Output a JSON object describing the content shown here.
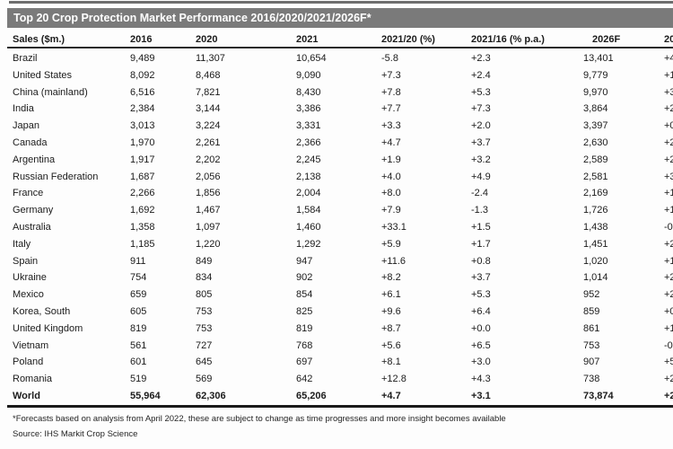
{
  "chart_data": {
    "type": "table",
    "title": "Top 20 Crop Protection Market Performance 2016/2020/2021/2026F*",
    "columns": [
      "Sales ($m.)",
      "2016",
      "2020",
      "2021",
      "2021/20 (%)",
      "2021/16 (% p.a.)",
      "2026F",
      "20"
    ],
    "rows": [
      [
        "Brazil",
        "9,489",
        "11,307",
        "10,654",
        "-5.8",
        "+2.3",
        "13,401",
        "+4"
      ],
      [
        "United States",
        "8,092",
        "8,468",
        "9,090",
        "+7.3",
        "+2.4",
        "9,779",
        "+1"
      ],
      [
        "China (mainland)",
        "6,516",
        "7,821",
        "8,430",
        "+7.8",
        "+5.3",
        "9,970",
        "+3"
      ],
      [
        "India",
        "2,384",
        "3,144",
        "3,386",
        "+7.7",
        "+7.3",
        "3,864",
        "+2"
      ],
      [
        "Japan",
        "3,013",
        "3,224",
        "3,331",
        "+3.3",
        "+2.0",
        "3,397",
        "+0"
      ],
      [
        "Canada",
        "1,970",
        "2,261",
        "2,366",
        "+4.7",
        "+3.7",
        "2,630",
        "+2"
      ],
      [
        "Argentina",
        "1,917",
        "2,202",
        "2,245",
        "+1.9",
        "+3.2",
        "2,589",
        "+2"
      ],
      [
        "Russian Federation",
        "1,687",
        "2,056",
        "2,138",
        "+4.0",
        "+4.9",
        "2,581",
        "+3"
      ],
      [
        "France",
        "2,266",
        "1,856",
        "2,004",
        "+8.0",
        "-2.4",
        "2,169",
        "+1"
      ],
      [
        "Germany",
        "1,692",
        "1,467",
        "1,584",
        "+7.9",
        "-1.3",
        "1,726",
        "+1"
      ],
      [
        "Australia",
        "1,358",
        "1,097",
        "1,460",
        "+33.1",
        "+1.5",
        "1,438",
        "-0"
      ],
      [
        "Italy",
        "1,185",
        "1,220",
        "1,292",
        "+5.9",
        "+1.7",
        "1,451",
        "+2"
      ],
      [
        "Spain",
        "911",
        "849",
        "947",
        "+11.6",
        "+0.8",
        "1,020",
        "+1"
      ],
      [
        "Ukraine",
        "754",
        "834",
        "902",
        "+8.2",
        "+3.7",
        "1,014",
        "+2"
      ],
      [
        "Mexico",
        "659",
        "805",
        "854",
        "+6.1",
        "+5.3",
        "952",
        "+2"
      ],
      [
        "Korea, South",
        "605",
        "753",
        "825",
        "+9.6",
        "+6.4",
        "859",
        "+0"
      ],
      [
        "United Kingdom",
        "819",
        "753",
        "819",
        "+8.7",
        "+0.0",
        "861",
        "+1"
      ],
      [
        "Vietnam",
        "561",
        "727",
        "768",
        "+5.6",
        "+6.5",
        "753",
        "-0"
      ],
      [
        "Poland",
        "601",
        "645",
        "697",
        "+8.1",
        "+3.0",
        "907",
        "+5"
      ],
      [
        "Romania",
        "519",
        "569",
        "642",
        "+12.8",
        "+4.3",
        "738",
        "+2"
      ]
    ],
    "world_row": [
      "World",
      "55,964",
      "62,306",
      "65,206",
      "+4.7",
      "+3.1",
      "73,874",
      "+2"
    ],
    "footnote": "*Forecasts based on analysis from April 2022, these are subject to change as time progresses and more insight becomes available",
    "source": "Source: IHS Markit Crop Science"
  },
  "colors": {
    "title_bar": "#7a7a7a",
    "title_text": "#ffffff",
    "top_strip": "#6d6d6d",
    "header_rule": "#2b2b2b",
    "world_rule": "#1a1a1a",
    "text": "#1b1b1b",
    "background": "#fdfdfd"
  }
}
